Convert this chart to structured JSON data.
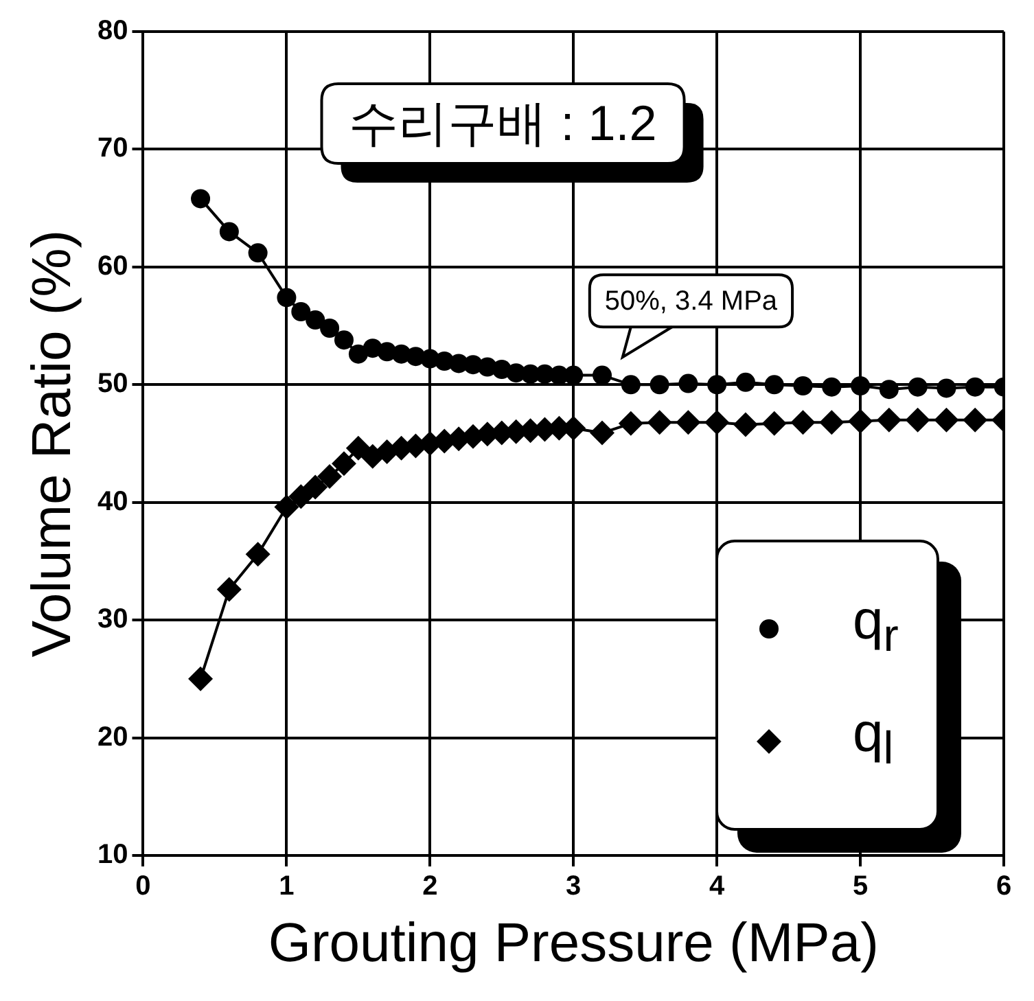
{
  "chart_data": {
    "type": "line",
    "xlabel": "Grouting Pressure (MPa)",
    "ylabel": "Volume Ratio (%)",
    "xlim": [
      0,
      6
    ],
    "xticks": [
      0,
      1,
      2,
      3,
      4,
      5,
      6
    ],
    "ylim": [
      10,
      80
    ],
    "yticks": [
      10,
      20,
      30,
      40,
      50,
      60,
      70,
      80
    ],
    "grid": true,
    "legend": "bottom right",
    "line_style": "solid",
    "annotations": [
      "수리구배 : 1.2",
      {
        "text": "50%, 3.4 MPa",
        "x": 3.4,
        "y": 50
      }
    ],
    "series": [
      {
        "name": "q$_{r}$",
        "color": "#000000",
        "marker": "circle",
        "x": [
          0.4,
          0.6,
          0.8,
          1.0,
          1.1,
          1.2,
          1.3,
          1.4,
          1.5,
          1.6,
          1.7,
          1.8,
          1.9,
          2.0,
          2.1,
          2.2,
          2.3,
          2.4,
          2.5,
          2.6,
          2.7,
          2.8,
          2.9,
          3.0,
          3.2,
          3.4,
          3.6,
          3.8,
          4.0,
          4.2,
          4.4,
          4.6,
          4.8,
          5.0,
          5.2,
          5.4,
          5.6,
          5.8,
          6.0
        ],
        "values": [
          65.8,
          63,
          61.2,
          57.4,
          56.2,
          55.5,
          54.8,
          53.8,
          52.6,
          53.1,
          52.8,
          52.6,
          52.4,
          52.2,
          52.0,
          51.8,
          51.7,
          51.5,
          51.3,
          51.0,
          50.9,
          50.9,
          50.8,
          50.8,
          50.8,
          50.0,
          50.0,
          50.1,
          50.0,
          50.2,
          50.0,
          49.9,
          49.8,
          49.9,
          49.6,
          49.8,
          49.7,
          49.8,
          49.8
        ]
      },
      {
        "name": "q$_{l}$",
        "color": "#000000",
        "marker": "diamond",
        "x": [
          0.4,
          0.6,
          0.8,
          1.0,
          1.1,
          1.2,
          1.3,
          1.4,
          1.5,
          1.6,
          1.7,
          1.8,
          1.9,
          2.0,
          2.1,
          2.2,
          2.3,
          2.4,
          2.5,
          2.6,
          2.7,
          2.8,
          2.9,
          3.0,
          3.2,
          3.4,
          3.6,
          3.8,
          4.0,
          4.2,
          4.4,
          4.6,
          4.8,
          5.0,
          5.2,
          5.4,
          5.6,
          5.8,
          6.0
        ],
        "values": [
          25,
          32.6,
          35.6,
          39.6,
          40.5,
          41.3,
          42.2,
          43.3,
          44.6,
          43.9,
          44.3,
          44.6,
          44.8,
          45.0,
          45.2,
          45.4,
          45.6,
          45.8,
          45.9,
          46.0,
          46.1,
          46.2,
          46.3,
          46.3,
          45.9,
          46.7,
          46.8,
          46.8,
          46.8,
          46.6,
          46.7,
          46.8,
          46.8,
          46.9,
          47.0,
          47.0,
          47.0,
          47.0,
          47.0
        ]
      }
    ]
  }
}
